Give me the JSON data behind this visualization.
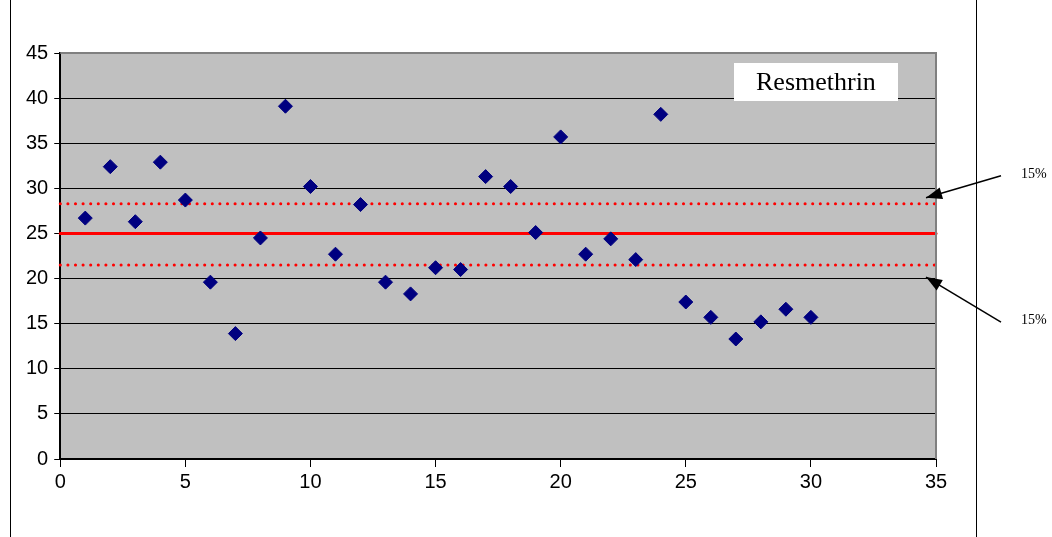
{
  "chart_data": {
    "type": "scatter",
    "title": "Resmethrin",
    "x": [
      1,
      2,
      3,
      4,
      5,
      6,
      7,
      8,
      9,
      10,
      11,
      12,
      13,
      14,
      15,
      16,
      17,
      18,
      19,
      20,
      21,
      22,
      23,
      24,
      25,
      26,
      27,
      28,
      29,
      30
    ],
    "values": [
      26.7,
      32.4,
      26.3,
      32.9,
      28.7,
      19.6,
      13.9,
      24.5,
      39.1,
      30.2,
      22.7,
      28.2,
      19.6,
      18.3,
      21.2,
      21.0,
      31.3,
      30.2,
      25.1,
      35.7,
      22.7,
      24.4,
      22.1,
      38.2,
      17.4,
      15.7,
      13.3,
      15.2,
      16.6,
      15.7
    ],
    "color": "#000080",
    "marker": "diamond",
    "xlim": [
      0,
      35
    ],
    "xticks": [
      0,
      5,
      10,
      15,
      20,
      25,
      30,
      35
    ],
    "ylim": [
      0,
      45
    ],
    "yticks": [
      0,
      5,
      10,
      15,
      20,
      25,
      30,
      35,
      40,
      45
    ],
    "grid": "y",
    "legend": false,
    "ref_lines": [
      {
        "axis": "y",
        "value": 25,
        "color": "#ff0000",
        "line_style": "solid"
      },
      {
        "axis": "y",
        "value": 28.3,
        "color": "#ff0000",
        "line_style": "dotted"
      },
      {
        "axis": "y",
        "value": 21.5,
        "color": "#ff0000",
        "line_style": "dotted"
      }
    ],
    "annotations": [
      "15%",
      "15%"
    ]
  }
}
